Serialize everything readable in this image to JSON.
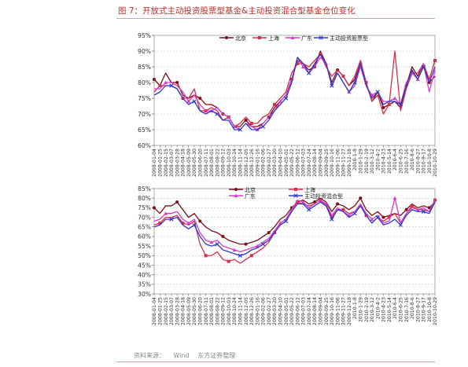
{
  "figure": {
    "title": "图 7：开放式主动投资股票型基金&主动投资混合型基金仓位变化",
    "source_label": "资料来源：",
    "source_parts": [
      "Wind",
      "东方证券整理"
    ]
  },
  "colors": {
    "title": "#c0302e",
    "rule": "#cfa5a5"
  },
  "chart_data": [
    {
      "type": "line",
      "title": "",
      "xlabel": "",
      "ylabel": "",
      "ylim": [
        60,
        95
      ],
      "yticks": [
        "60%",
        "65%",
        "70%",
        "75%",
        "80%",
        "85%",
        "90%",
        "95%"
      ],
      "ytick_values": [
        60,
        65,
        70,
        75,
        80,
        85,
        90,
        95
      ],
      "grid": true,
      "legend_position": "top",
      "x": [
        "2008-01-04",
        "2008-01-25",
        "2008-02-15",
        "2008-03-07",
        "2008-03-28",
        "2008-04-18",
        "2008-05-09",
        "2008-05-30",
        "2008-06-20",
        "2008-07-11",
        "2008-08-01",
        "2008-08-22",
        "2008-09-12",
        "2008-10-03",
        "2008-10-24",
        "2008-11-14",
        "2008-12-05",
        "2008-12-26",
        "2009-01-16",
        "2009-02-06",
        "2009-02-27",
        "2009-03-20",
        "2009-04-10",
        "2009-05-01",
        "2009-05-22",
        "2009-06-12",
        "2009-07-03",
        "2009-07-24",
        "2009-08-14",
        "2009-09-04",
        "2009-09-25",
        "2009-10-16",
        "2009-11-06",
        "2009-11-27",
        "2009-12-18",
        "2010-1-8",
        "2010-1-29",
        "2010-2-19",
        "2010-3-12",
        "2010-4-2",
        "2010-4-23",
        "2010-5-14",
        "2010-6-4",
        "2010-6-25",
        "2010-7-16",
        "2010-8-6",
        "2010-8-27",
        "2010-9-17",
        "2010-10-8",
        "2010-10-29"
      ],
      "series": [
        {
          "name": "北京",
          "color": "#7a1018",
          "marker": "circle",
          "values": [
            81,
            79,
            83,
            80,
            80,
            76,
            75,
            76,
            75,
            73,
            73,
            72,
            70,
            69,
            66,
            66,
            68,
            66,
            66,
            67,
            69,
            72,
            74,
            76,
            81,
            87,
            86,
            84,
            85,
            90,
            86,
            80,
            84,
            82,
            79,
            81,
            86,
            80,
            74,
            77,
            72,
            73,
            74,
            72,
            79,
            85,
            82,
            86,
            80,
            82
          ]
        },
        {
          "name": "上海",
          "color": "#d6304a",
          "marker": "square",
          "values": [
            77,
            79,
            79,
            79,
            78,
            75,
            75,
            78,
            71,
            71,
            72,
            71,
            68,
            69,
            66,
            67,
            69,
            67,
            67,
            69,
            70,
            73,
            75,
            77,
            83,
            86,
            86,
            85,
            87,
            89,
            85,
            82,
            84,
            82,
            79,
            82,
            87,
            80,
            74,
            76,
            70,
            73,
            90,
            71,
            78,
            83,
            83,
            86,
            81,
            87
          ]
        },
        {
          "name": "广东",
          "color": "#d63cc8",
          "marker": "triangle",
          "values": [
            78,
            78,
            80,
            80,
            79,
            77,
            74,
            76,
            73,
            71,
            71,
            72,
            70,
            69,
            66,
            65,
            67,
            66,
            65,
            67,
            69,
            71,
            74,
            76,
            81,
            88,
            85,
            83,
            85,
            88,
            86,
            79,
            83,
            80,
            77,
            79,
            85,
            79,
            76,
            77,
            74,
            74,
            75,
            73,
            80,
            83,
            81,
            86,
            77,
            84
          ]
        },
        {
          "name": "主动投资股票型",
          "color": "#2f39c8",
          "marker": "cross",
          "values": [
            76,
            77,
            79,
            79,
            78,
            75,
            73,
            74,
            71,
            70,
            71,
            70,
            68,
            68,
            65,
            65,
            67,
            65,
            65,
            66,
            68,
            71,
            73,
            75,
            80,
            88,
            86,
            83,
            86,
            89,
            86,
            79,
            83,
            80,
            77,
            80,
            86,
            79,
            75,
            77,
            73,
            74,
            74,
            73,
            79,
            84,
            81,
            85,
            80,
            85
          ]
        }
      ]
    },
    {
      "type": "line",
      "title": "",
      "xlabel": "",
      "ylabel": "",
      "ylim": [
        30,
        85
      ],
      "yticks": [
        "30%",
        "35%",
        "40%",
        "45%",
        "50%",
        "55%",
        "60%",
        "65%",
        "70%",
        "75%",
        "80%",
        "85%"
      ],
      "ytick_values": [
        30,
        35,
        40,
        45,
        50,
        55,
        60,
        65,
        70,
        75,
        80,
        85
      ],
      "grid": true,
      "legend_position": "top",
      "x": [
        "2008-01-04",
        "2008-01-25",
        "2008-02-15",
        "2008-03-07",
        "2008-03-28",
        "2008-04-18",
        "2008-05-09",
        "2008-05-30",
        "2008-06-20",
        "2008-07-11",
        "2008-08-01",
        "2008-08-22",
        "2008-09-12",
        "2008-10-03",
        "2008-10-24",
        "2008-11-14",
        "2008-12-05",
        "2008-12-26",
        "2009-01-16",
        "2009-02-06",
        "2009-02-27",
        "2009-03-20",
        "2009-04-10",
        "2009-05-01",
        "2009-05-22",
        "2009-06-12",
        "2009-07-03",
        "2009-07-24",
        "2009-08-14",
        "2009-09-04",
        "2009-09-25",
        "2009-10-16",
        "2009-11-06",
        "2009-11-27",
        "2009-12-18",
        "2010-1-8",
        "2010-1-29",
        "2010-2-19",
        "2010-3-12",
        "2010-4-2",
        "2010-4-23",
        "2010-5-14",
        "2010-6-4",
        "2010-6-25",
        "2010-7-16",
        "2010-8-6",
        "2010-8-27",
        "2010-9-17",
        "2010-10-8",
        "2010-10-29"
      ],
      "series": [
        {
          "name": "北京",
          "color": "#7a1018",
          "marker": "circle",
          "values": [
            75,
            72,
            76,
            76,
            78,
            74,
            70,
            72,
            68,
            65,
            63,
            62,
            60,
            58,
            57,
            56,
            56,
            57,
            58,
            60,
            62,
            65,
            69,
            71,
            75,
            78,
            79,
            77,
            78,
            80,
            78,
            73,
            77,
            76,
            74,
            76,
            80,
            74,
            71,
            73,
            70,
            71,
            72,
            71,
            74,
            77,
            75,
            76,
            75,
            78
          ]
        },
        {
          "name": "上海",
          "color": "#d6304a",
          "marker": "square",
          "values": [
            66,
            67,
            70,
            70,
            71,
            67,
            66,
            68,
            56,
            50,
            50,
            52,
            48,
            47,
            48,
            46,
            48,
            50,
            52,
            54,
            57,
            62,
            66,
            68,
            74,
            78,
            77,
            76,
            77,
            79,
            76,
            70,
            74,
            74,
            72,
            73,
            76,
            71,
            67,
            70,
            68,
            70,
            72,
            67,
            72,
            76,
            74,
            74,
            73,
            79
          ]
        },
        {
          "name": "广东",
          "color": "#d63cc8",
          "marker": "triangle",
          "values": [
            68,
            69,
            72,
            72,
            73,
            69,
            67,
            69,
            62,
            58,
            57,
            58,
            55,
            54,
            53,
            52,
            53,
            54,
            55,
            57,
            59,
            63,
            67,
            69,
            74,
            79,
            78,
            75,
            77,
            79,
            77,
            71,
            75,
            73,
            71,
            73,
            77,
            72,
            69,
            71,
            67,
            68,
            80,
            67,
            72,
            75,
            74,
            75,
            73,
            79
          ]
        },
        {
          "name": "主动投资混合型",
          "color": "#2f39c8",
          "marker": "cross",
          "values": [
            65,
            66,
            69,
            69,
            70,
            66,
            64,
            66,
            60,
            56,
            55,
            56,
            53,
            52,
            51,
            50,
            51,
            53,
            54,
            56,
            58,
            62,
            66,
            68,
            73,
            77,
            77,
            74,
            76,
            78,
            76,
            69,
            74,
            73,
            70,
            72,
            76,
            71,
            67,
            70,
            66,
            67,
            69,
            66,
            71,
            74,
            73,
            73,
            72,
            78
          ]
        }
      ]
    }
  ]
}
